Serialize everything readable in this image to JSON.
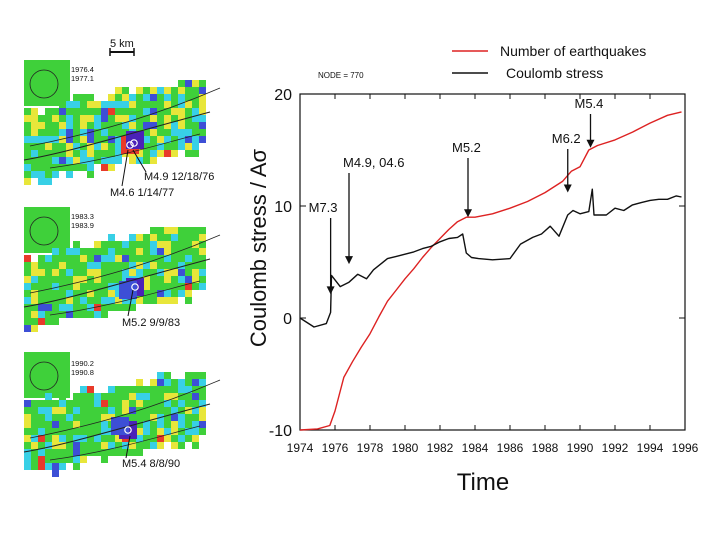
{
  "maps": {
    "scale_label": "5 km",
    "panels": [
      {
        "dates": [
          "1976.4",
          "1977.1"
        ],
        "events": [
          "M4.9  12/18/76",
          "M4.6  1/14/77"
        ]
      },
      {
        "dates": [
          "1983.3",
          "1983.9"
        ],
        "events": [
          "M5.2  9/9/83"
        ]
      },
      {
        "dates": [
          "1990.2",
          "1990.8"
        ],
        "events": [
          "M5.4  8/8/90"
        ]
      }
    ],
    "colors": {
      "blue": "#3d4fd6",
      "cyan": "#38d0e6",
      "green": "#3fd03a",
      "yellow": "#e8e63a",
      "red": "#e83a2a",
      "purple": "#4a22b8"
    }
  },
  "chart_data": {
    "type": "line",
    "title": "",
    "node_label": "NODE =  770",
    "xlabel": "Time",
    "ylabel": "Coulomb stress / A",
    "ylabel_symbol": "σ",
    "xlim": [
      1974,
      1996
    ],
    "ylim": [
      -10,
      20
    ],
    "x_ticks": [
      "1974",
      "1976",
      "1978",
      "1980",
      "1982",
      "1984",
      "1986",
      "1988",
      "1990",
      "1992",
      "1994",
      "1996"
    ],
    "y_ticks": [
      "-10",
      "0",
      "10",
      "20"
    ],
    "legend": [
      {
        "name": "Number of earthquakes",
        "color": "#dd2222"
      },
      {
        "name": "Coulomb stress",
        "color": "#111111"
      }
    ],
    "series": [
      {
        "name": "Number of earthquakes",
        "color": "#dd2222",
        "x": [
          1974.0,
          1975.0,
          1975.7,
          1976.0,
          1976.5,
          1977.0,
          1977.5,
          1978.0,
          1978.5,
          1979.0,
          1979.5,
          1980.0,
          1980.5,
          1981.0,
          1981.5,
          1982.0,
          1982.5,
          1983.0,
          1983.5,
          1984.0,
          1985.0,
          1986.0,
          1987.0,
          1988.0,
          1989.0,
          1989.5,
          1990.0,
          1990.5,
          1991.0,
          1992.0,
          1993.0,
          1994.0,
          1995.0,
          1995.8
        ],
        "y": [
          -10.0,
          -9.9,
          -9.6,
          -8.3,
          -5.3,
          -3.9,
          -2.6,
          -1.4,
          0.1,
          1.5,
          2.5,
          3.5,
          4.4,
          5.4,
          6.3,
          7.1,
          7.9,
          8.6,
          9.0,
          9.0,
          9.3,
          9.8,
          10.4,
          11.2,
          12.2,
          13.1,
          13.5,
          15.0,
          15.4,
          15.9,
          16.6,
          17.4,
          18.1,
          18.4
        ]
      },
      {
        "name": "Coulomb stress",
        "color": "#111111",
        "x": [
          1974.0,
          1974.8,
          1975.5,
          1975.75,
          1975.8,
          1976.3,
          1976.8,
          1977.3,
          1977.8,
          1978.2,
          1978.6,
          1979.0,
          1979.5,
          1980.0,
          1980.5,
          1981.0,
          1981.5,
          1982.0,
          1982.5,
          1983.0,
          1983.3,
          1983.5,
          1983.8,
          1984.2,
          1985.0,
          1986.0,
          1986.6,
          1987.3,
          1987.8,
          1988.3,
          1988.8,
          1989.3,
          1989.6,
          1990.0,
          1990.5,
          1990.7,
          1990.8,
          1991.5,
          1992.0,
          1992.5,
          1993.0,
          1993.5,
          1994.0,
          1994.5,
          1995.0,
          1995.5,
          1995.8
        ],
        "y": [
          0.0,
          -0.8,
          -0.5,
          0.5,
          3.8,
          2.8,
          3.2,
          3.9,
          3.5,
          4.3,
          4.8,
          5.3,
          5.5,
          5.7,
          5.9,
          6.2,
          6.4,
          6.8,
          7.1,
          7.2,
          7.5,
          5.8,
          5.4,
          5.3,
          5.2,
          5.3,
          6.6,
          7.2,
          7.5,
          8.2,
          7.3,
          9.2,
          9.6,
          9.3,
          9.5,
          11.5,
          9.2,
          9.2,
          9.8,
          9.6,
          10.1,
          10.3,
          10.5,
          10.6,
          10.6,
          10.9,
          10.8
        ]
      }
    ],
    "annotations": [
      {
        "text": "M7.3",
        "x": 1975.75
      },
      {
        "text": "M4.9, 04.6",
        "x": 1976.8
      },
      {
        "text": "M5.2",
        "x": 1983.6
      },
      {
        "text": "M6.2",
        "x": 1989.3
      },
      {
        "text": "M5.4",
        "x": 1990.6
      }
    ]
  }
}
